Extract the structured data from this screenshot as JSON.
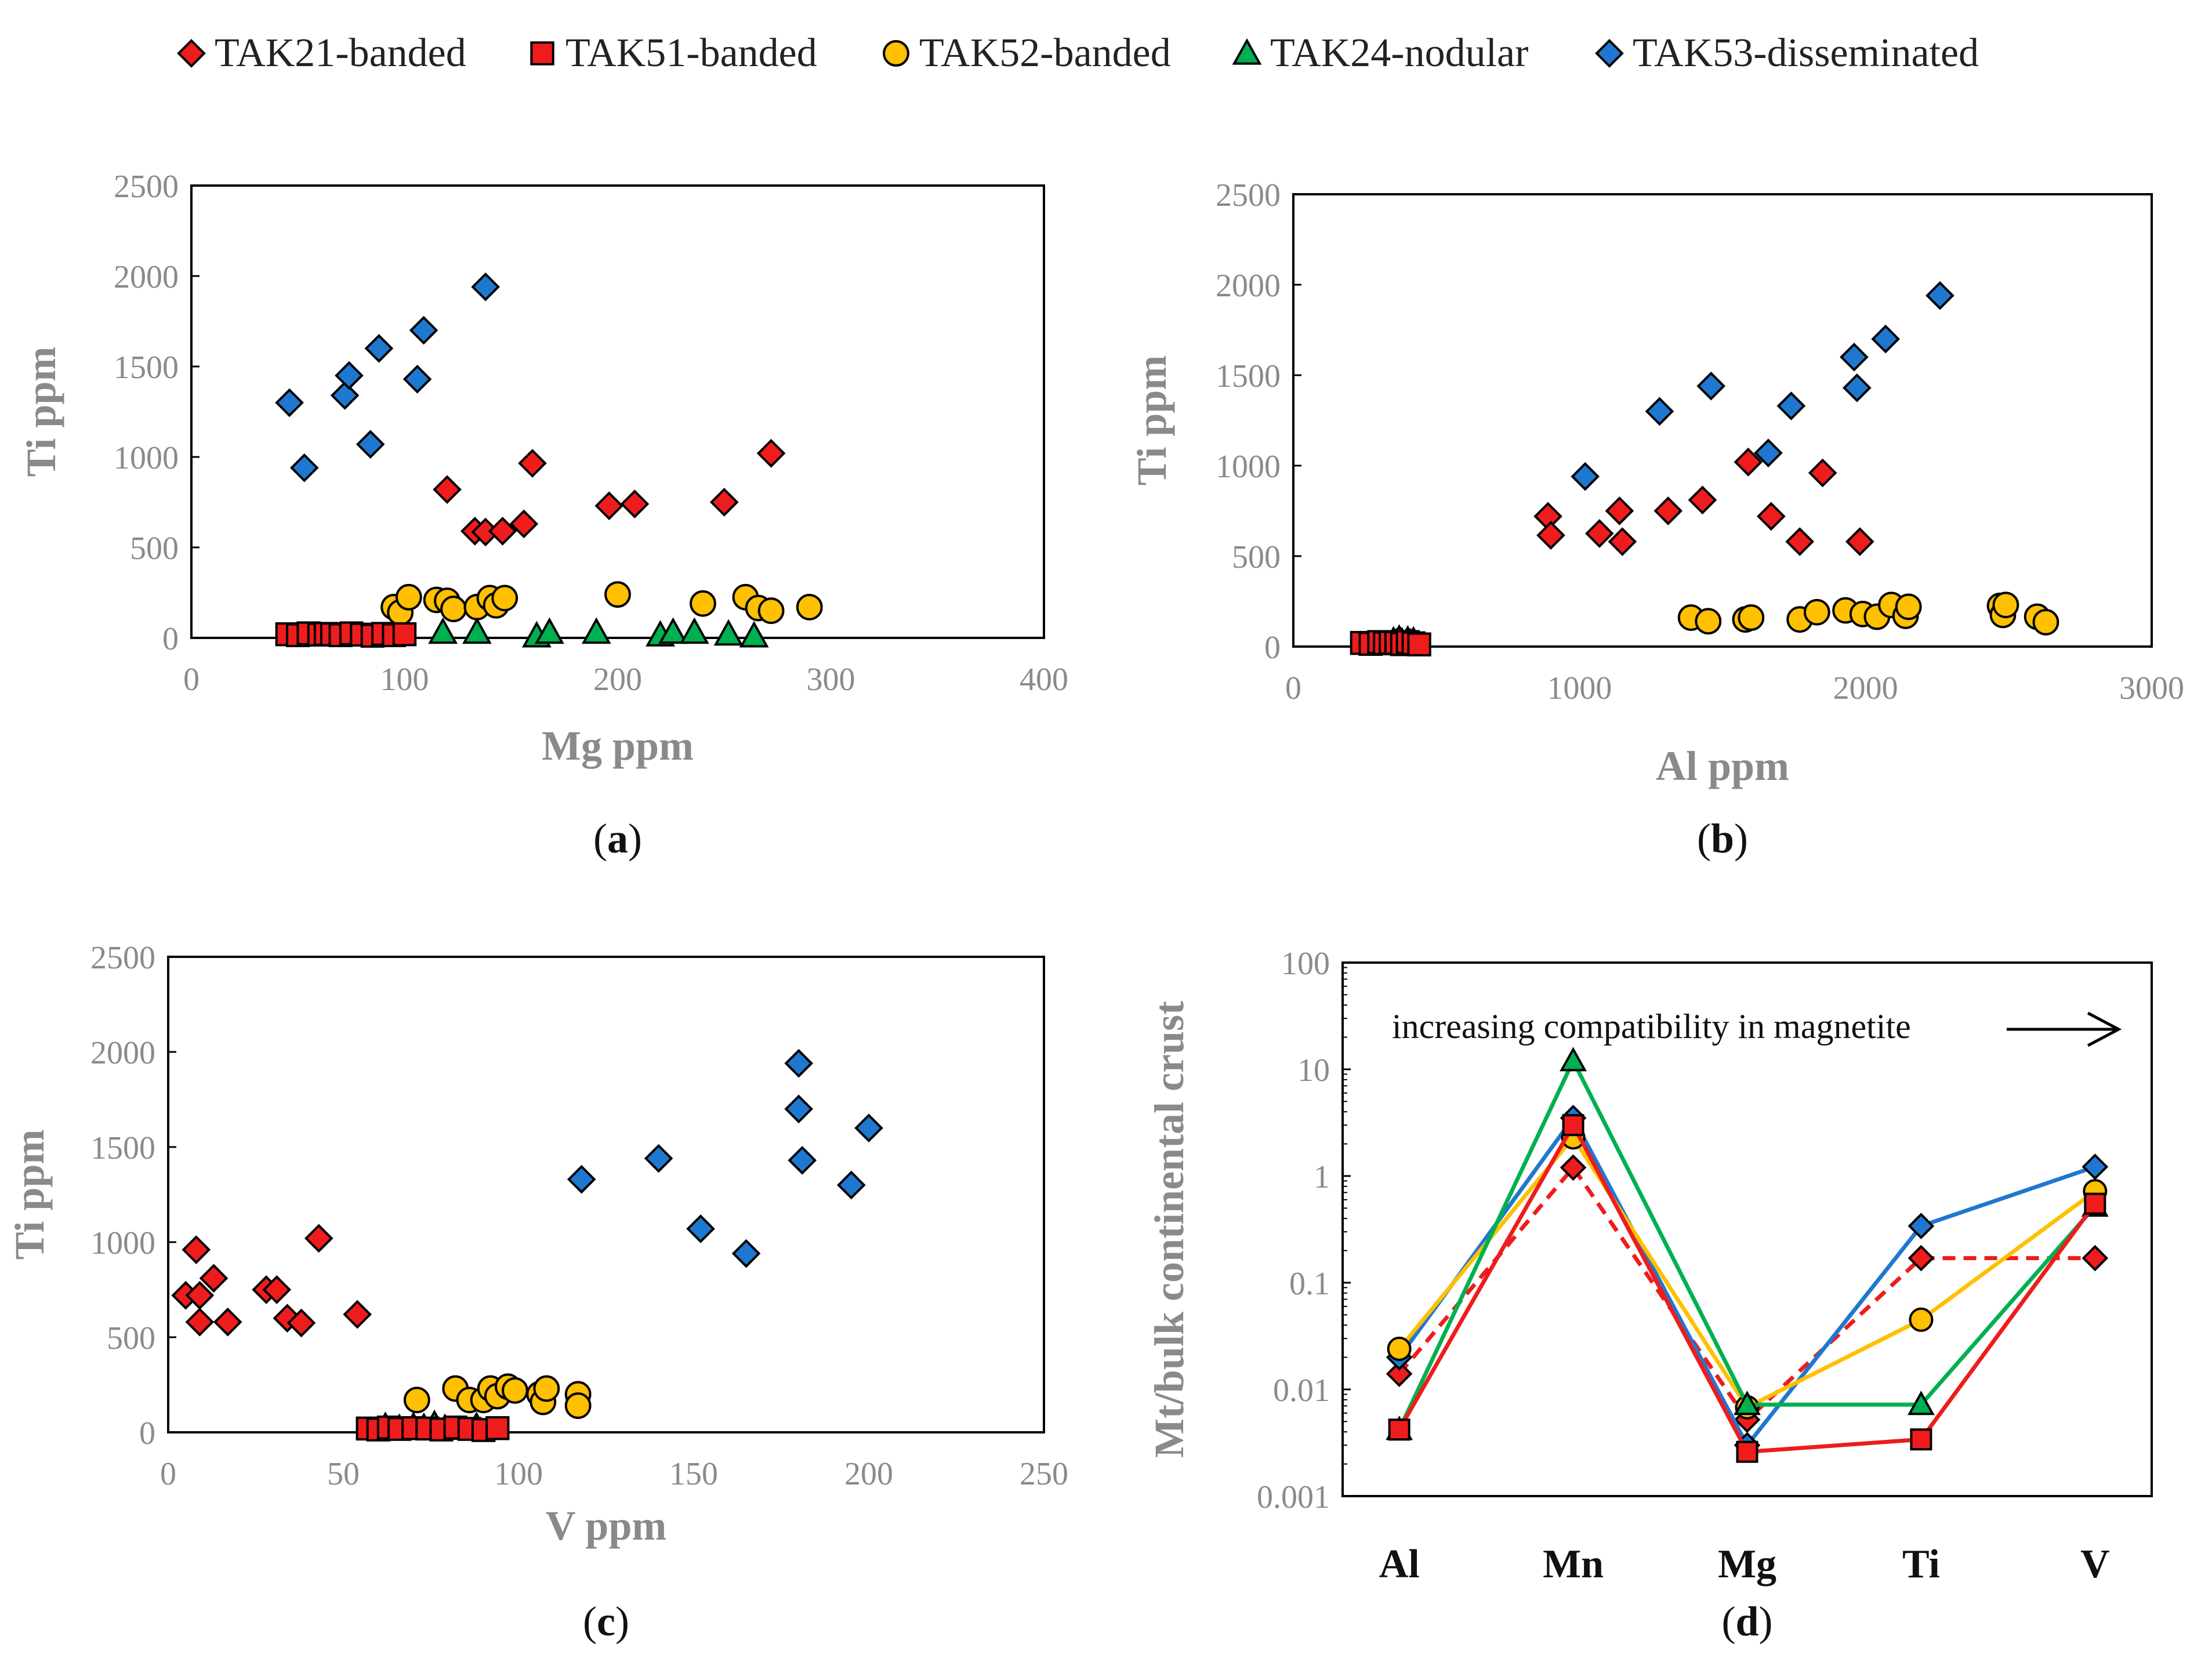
{
  "figure": {
    "legend": [
      {
        "label": "TAK21-banded",
        "marker": "diamond",
        "color": "#ee1c1c"
      },
      {
        "label": "TAK51-banded",
        "marker": "square",
        "color": "#ee1c1c"
      },
      {
        "label": "TAK52-banded",
        "marker": "circle",
        "color": "#ffc000"
      },
      {
        "label": "TAK24-nodular",
        "marker": "triangle",
        "color": "#00b050"
      },
      {
        "label": "TAK53-disseminated",
        "marker": "diamond",
        "color": "#1f78d0"
      }
    ]
  },
  "chart_data": [
    {
      "panel": "a",
      "panel_label_pre": "(",
      "panel_label_letter": "a",
      "panel_label_post": ")",
      "type": "scatter",
      "xlabel": "Mg ppm",
      "ylabel": "Ti ppm",
      "xlim": [
        0,
        400
      ],
      "ylim": [
        0,
        2500
      ],
      "xticks": [
        0,
        100,
        200,
        300,
        400
      ],
      "yticks": [
        0,
        500,
        1000,
        1500,
        2000,
        2500
      ],
      "series": [
        {
          "name": "TAK21-banded",
          "marker": "diamond",
          "color": "#ee1c1c",
          "x": [
            120,
            133,
            138,
            146,
            156,
            160,
            196,
            208,
            250,
            272
          ],
          "y": [
            820,
            590,
            585,
            590,
            630,
            965,
            730,
            740,
            750,
            1020
          ]
        },
        {
          "name": "TAK51-banded",
          "marker": "square",
          "color": "#ee1c1c",
          "x": [
            45,
            50,
            55,
            60,
            63,
            66,
            70,
            75,
            80,
            85,
            90,
            95,
            100
          ],
          "y": [
            20,
            15,
            25,
            18,
            22,
            20,
            15,
            25,
            18,
            12,
            22,
            15,
            20
          ]
        },
        {
          "name": "TAK52-banded",
          "marker": "circle",
          "color": "#ffc000",
          "x": [
            95,
            98,
            102,
            115,
            120,
            123,
            134,
            140,
            143,
            147,
            200,
            240,
            260,
            266,
            272,
            290
          ],
          "y": [
            170,
            140,
            225,
            210,
            205,
            160,
            170,
            220,
            180,
            220,
            240,
            190,
            225,
            165,
            150,
            170
          ]
        },
        {
          "name": "TAK24-nodular",
          "marker": "triangle",
          "color": "#00b050",
          "x": [
            118,
            134,
            162,
            168,
            190,
            220,
            226,
            236,
            252,
            264
          ],
          "y": [
            30,
            30,
            10,
            30,
            30,
            15,
            30,
            30,
            20,
            10
          ]
        },
        {
          "name": "TAK53-disseminated",
          "marker": "diamond",
          "color": "#1f78d0",
          "x": [
            46,
            53,
            72,
            74,
            84,
            88,
            106,
            109,
            138
          ],
          "y": [
            1300,
            940,
            1340,
            1450,
            1070,
            1600,
            1430,
            1700,
            1940
          ]
        }
      ]
    },
    {
      "panel": "b",
      "panel_label_pre": "(",
      "panel_label_letter": "b",
      "panel_label_post": ")",
      "type": "scatter",
      "xlabel": "Al ppm",
      "ylabel": "Ti ppm",
      "xlim": [
        0,
        3000
      ],
      "ylim": [
        0,
        2500
      ],
      "xticks": [
        0,
        1000,
        2000,
        3000
      ],
      "yticks": [
        0,
        500,
        1000,
        1500,
        2000,
        2500
      ],
      "series": [
        {
          "name": "TAK21-banded",
          "marker": "diamond",
          "color": "#ee1c1c",
          "x": [
            890,
            900,
            1070,
            1140,
            1150,
            1310,
            1430,
            1590,
            1670,
            1770,
            1850,
            1980
          ],
          "y": [
            720,
            615,
            625,
            750,
            580,
            750,
            810,
            1020,
            720,
            580,
            960,
            580
          ]
        },
        {
          "name": "TAK51-banded",
          "marker": "square",
          "color": "#ee1c1c",
          "x": [
            240,
            270,
            300,
            320,
            340,
            360,
            380,
            400,
            420,
            440
          ],
          "y": [
            20,
            15,
            25,
            18,
            22,
            20,
            15,
            25,
            18,
            12
          ]
        },
        {
          "name": "TAK52-banded",
          "marker": "circle",
          "color": "#ffc000",
          "x": [
            1390,
            1450,
            1580,
            1600,
            1770,
            1830,
            1930,
            1990,
            2040,
            2090,
            2140,
            2150,
            2470,
            2480,
            2490,
            2600,
            2630
          ],
          "y": [
            160,
            140,
            150,
            160,
            150,
            190,
            200,
            180,
            165,
            230,
            170,
            220,
            225,
            175,
            230,
            165,
            135
          ]
        },
        {
          "name": "TAK24-nodular",
          "marker": "triangle",
          "color": "#00b050",
          "x": [
            350,
            360,
            370,
            380,
            390,
            400,
            410,
            420
          ],
          "y": [
            30,
            20,
            40,
            25,
            10,
            35,
            20,
            30
          ]
        },
        {
          "name": "TAK53-disseminated",
          "marker": "diamond",
          "color": "#1f78d0",
          "x": [
            1020,
            1280,
            1460,
            1660,
            1740,
            1960,
            1970,
            2070,
            2260
          ],
          "y": [
            940,
            1300,
            1440,
            1070,
            1330,
            1600,
            1430,
            1700,
            1940
          ]
        }
      ]
    },
    {
      "panel": "c",
      "panel_label_pre": "(",
      "panel_label_letter": "c",
      "panel_label_post": ")",
      "type": "scatter",
      "xlabel": "V ppm",
      "ylabel": "Ti ppm",
      "xlim": [
        0,
        250
      ],
      "ylim": [
        0,
        2500
      ],
      "xticks": [
        0,
        50,
        100,
        150,
        200,
        250
      ],
      "yticks": [
        0,
        500,
        1000,
        1500,
        2000,
        2500
      ],
      "series": [
        {
          "name": "TAK21-banded",
          "marker": "diamond",
          "color": "#ee1c1c",
          "x": [
            5,
            8,
            9,
            9,
            13,
            17,
            28,
            31,
            34,
            38,
            43,
            54
          ],
          "y": [
            720,
            960,
            720,
            580,
            810,
            580,
            750,
            750,
            600,
            575,
            1020,
            620
          ]
        },
        {
          "name": "TAK51-banded",
          "marker": "square",
          "color": "#ee1c1c",
          "x": [
            57,
            60,
            63,
            66,
            70,
            74,
            78,
            82,
            86,
            90,
            94
          ],
          "y": [
            20,
            15,
            25,
            18,
            22,
            20,
            15,
            25,
            18,
            12,
            22
          ]
        },
        {
          "name": "TAK52-banded",
          "marker": "circle",
          "color": "#ffc000",
          "x": [
            71,
            82,
            86,
            90,
            92,
            94,
            97,
            99,
            106,
            107,
            108,
            117,
            117
          ],
          "y": [
            170,
            230,
            170,
            170,
            230,
            190,
            240,
            220,
            200,
            160,
            230,
            200,
            140
          ]
        },
        {
          "name": "TAK24-nodular",
          "marker": "triangle",
          "color": "#00b050",
          "x": [
            62,
            66,
            70,
            73,
            76,
            79,
            88
          ],
          "y": [
            30,
            20,
            30,
            25,
            40,
            20,
            30
          ]
        },
        {
          "name": "TAK53-disseminated",
          "marker": "diamond",
          "color": "#1f78d0",
          "x": [
            118,
            140,
            152,
            165,
            180,
            180,
            181,
            195,
            200
          ],
          "y": [
            1330,
            1440,
            1070,
            940,
            1940,
            1700,
            1430,
            1300,
            1600
          ]
        }
      ]
    },
    {
      "panel": "d",
      "panel_label_pre": "(",
      "panel_label_letter": "d",
      "panel_label_post": ")",
      "type": "line",
      "yscale": "log",
      "ylabel": "Mt/bulk continental crust",
      "ylim": [
        0.001,
        100
      ],
      "yticks": [
        0.001,
        0.01,
        0.1,
        1,
        10,
        100
      ],
      "ytick_labels": [
        "0.001",
        "0.01",
        "0.1",
        "1",
        "10",
        "100"
      ],
      "categories": [
        "Al",
        "Mn",
        "Mg",
        "Ti",
        "V"
      ],
      "annotation": "increasing compatibility in magnetite",
      "series": [
        {
          "name": "TAK21-banded",
          "marker": "diamond",
          "color": "#ee1c1c",
          "dashed": true,
          "values": [
            0.014,
            1.2,
            0.0052,
            0.17,
            0.17
          ]
        },
        {
          "name": "TAK51-banded",
          "marker": "square",
          "color": "#ee1c1c",
          "dashed": false,
          "values": [
            0.0042,
            3.0,
            0.0026,
            0.0034,
            0.55
          ]
        },
        {
          "name": "TAK52-banded",
          "marker": "circle",
          "color": "#ffc000",
          "dashed": false,
          "values": [
            0.024,
            2.3,
            0.0068,
            0.045,
            0.72
          ]
        },
        {
          "name": "TAK24-nodular",
          "marker": "triangle",
          "color": "#00b050",
          "dashed": false,
          "values": [
            0.0042,
            12,
            0.0072,
            0.0072,
            0.52
          ]
        },
        {
          "name": "TAK53-disseminated",
          "marker": "diamond",
          "color": "#1f78d0",
          "dashed": false,
          "values": [
            0.02,
            3.5,
            0.003,
            0.34,
            1.22
          ]
        }
      ]
    }
  ]
}
